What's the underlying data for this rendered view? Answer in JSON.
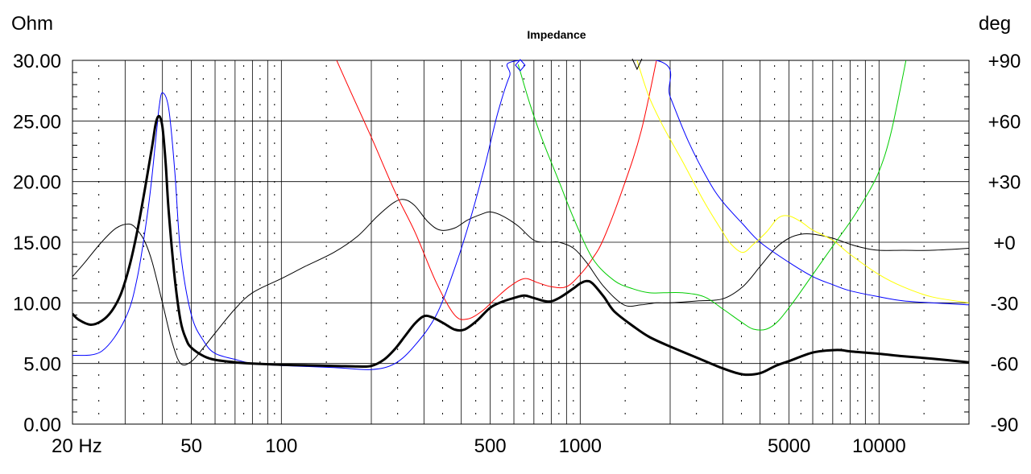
{
  "chart_data": {
    "type": "line",
    "title": "Impedance",
    "left_unit": "Ohm",
    "right_unit": "deg",
    "x_scale": "log",
    "xlim": [
      20,
      20000
    ],
    "ylim_left": [
      0,
      30
    ],
    "ylim_right": [
      -90,
      90
    ],
    "grid": true,
    "x_ticks": [
      {
        "value": 20,
        "label": "20 Hz"
      },
      {
        "value": 50,
        "label": "50"
      },
      {
        "value": 100,
        "label": "100"
      },
      {
        "value": 500,
        "label": "500"
      },
      {
        "value": 1000,
        "label": "1000"
      },
      {
        "value": 5000,
        "label": "5000"
      },
      {
        "value": 10000,
        "label": "10000"
      }
    ],
    "y_left_ticks": [
      {
        "value": 0,
        "label": "0.00"
      },
      {
        "value": 5,
        "label": "5.00"
      },
      {
        "value": 10,
        "label": "10.00"
      },
      {
        "value": 15,
        "label": "15.00"
      },
      {
        "value": 20,
        "label": "20.00"
      },
      {
        "value": 25,
        "label": "25.00"
      },
      {
        "value": 30,
        "label": "30.00"
      }
    ],
    "y_right_ticks": [
      {
        "value": 90,
        "label": "+90"
      },
      {
        "value": 60,
        "label": "+60"
      },
      {
        "value": 30,
        "label": "+30"
      },
      {
        "value": 0,
        "label": "+0"
      },
      {
        "value": -30,
        "label": "-30"
      },
      {
        "value": -60,
        "label": "-60"
      },
      {
        "value": -90,
        "label": "-90"
      }
    ],
    "series": [
      {
        "axis": "right",
        "color": "#000000",
        "width": 1,
        "x": [
          20,
          22,
          25,
          28,
          31,
          33,
          35,
          37,
          40,
          43,
          46,
          50,
          55,
          60,
          70,
          80,
          100,
          120,
          150,
          180,
          210,
          240,
          260,
          280,
          310,
          340,
          380,
          420,
          470,
          500,
          550,
          620,
          700,
          780,
          850,
          950,
          1050,
          1200,
          1400,
          1600,
          1800,
          2000,
          2500,
          3000,
          3500,
          4000,
          4500,
          5000,
          5500,
          6000,
          7000,
          8000,
          9000,
          10000,
          12000,
          15000,
          20000
        ],
        "y": [
          -17,
          -10,
          0,
          7,
          9,
          6,
          0,
          -10,
          -30,
          -49,
          -60,
          -59,
          -52,
          -45,
          -33,
          -25,
          -18,
          -12,
          -5,
          3,
          13,
          20,
          21,
          18,
          10,
          6,
          7,
          11,
          14,
          15,
          13,
          8,
          1,
          0,
          0,
          -3,
          -10,
          -22,
          -31,
          -31,
          -30,
          -30,
          -29,
          -28,
          -22,
          -12,
          -3,
          2,
          4,
          4,
          2,
          -1,
          -3,
          -4,
          -4,
          -4,
          -3
        ]
      },
      {
        "axis": "right",
        "color": "#ff0000",
        "width": 1,
        "x": [
          150,
          170,
          200,
          240,
          280,
          330,
          380,
          420,
          470,
          520,
          580,
          650,
          720,
          800,
          900,
          1000,
          1100,
          1200,
          1400,
          1600,
          1800
        ],
        "y": [
          93,
          75,
          52,
          25,
          5,
          -20,
          -36,
          -38,
          -34,
          -28,
          -22,
          -18,
          -20,
          -22,
          -22,
          -16,
          -8,
          2,
          28,
          55,
          90
        ]
      },
      {
        "axis": "right",
        "color": "#0000ff",
        "width": 1,
        "x": [
          20,
          25,
          30,
          33,
          36,
          38,
          39,
          40,
          42,
          44,
          46,
          50,
          55,
          60,
          70,
          80,
          100,
          150,
          200,
          240,
          280,
          330,
          380,
          430,
          480,
          530,
          580,
          630,
          1800,
          2000,
          2300,
          2700,
          3000,
          3500,
          4000,
          5000,
          6000,
          7000,
          8000,
          10000,
          12000,
          15000,
          20000
        ],
        "y": [
          -56,
          -54,
          -38,
          -17,
          19,
          51,
          67,
          74,
          66,
          35,
          -5,
          -36,
          -49,
          -55,
          -58,
          -60,
          -61,
          -62,
          -63,
          -60,
          -51,
          -36,
          -13,
          12,
          38,
          64,
          82,
          90,
          90,
          72,
          50,
          30,
          20,
          9,
          0,
          -10,
          -17,
          -21,
          -24,
          -27,
          -29,
          -30,
          -31
        ]
      },
      {
        "axis": "right",
        "color": "#00cc00",
        "width": 1,
        "x": [
          620,
          680,
          750,
          850,
          950,
          1100,
          1300,
          1500,
          1700,
          1900,
          2200,
          2600,
          3000,
          3500,
          3800,
          4200,
          4600,
          5200,
          6000,
          7000,
          8000,
          9000,
          10000,
          11000,
          12500
        ],
        "y": [
          88,
          68,
          50,
          30,
          12,
          -8,
          -19,
          -23,
          -25,
          -25,
          -25,
          -27,
          -33,
          -40,
          -43,
          -43,
          -39,
          -29,
          -16,
          -2,
          10,
          22,
          35,
          55,
          95
        ]
      },
      {
        "axis": "right",
        "color": "#ffff00",
        "width": 1,
        "x": [
          1550,
          1700,
          1900,
          2200,
          2600,
          3000,
          3200,
          3500,
          3800,
          4200,
          4600,
          5000,
          5500,
          6000,
          7000,
          8000,
          10000,
          12000,
          15000,
          20000
        ],
        "y": [
          90,
          72,
          57,
          40,
          20,
          5,
          -1,
          -5,
          -1,
          5,
          12,
          13,
          10,
          6,
          1,
          -6,
          -16,
          -22,
          -27,
          -30
        ]
      },
      {
        "axis": "left",
        "color": "#000000",
        "width": 3,
        "x": [
          20,
          21,
          23,
          25,
          27,
          29,
          31,
          33,
          35,
          37,
          38,
          39,
          40,
          41,
          42,
          44,
          46,
          48,
          50,
          55,
          60,
          70,
          80,
          100,
          120,
          150,
          180,
          200,
          220,
          240,
          260,
          280,
          300,
          320,
          350,
          380,
          410,
          450,
          500,
          550,
          600,
          650,
          700,
          780,
          850,
          950,
          1000,
          1050,
          1100,
          1200,
          1300,
          1500,
          1700,
          2000,
          2500,
          3000,
          3500,
          4000,
          4500,
          5000,
          6000,
          7000,
          7500,
          8000,
          10000,
          12000,
          15000,
          20000
        ],
        "y": [
          9.1,
          8.6,
          8.2,
          8.5,
          9.3,
          10.7,
          13,
          16,
          19.5,
          23,
          24.8,
          25.4,
          24.5,
          21.5,
          17.5,
          12,
          8.5,
          7,
          6.3,
          5.6,
          5.3,
          5.1,
          5.0,
          4.9,
          4.85,
          4.8,
          4.75,
          4.8,
          5.3,
          6.2,
          7.3,
          8.3,
          8.9,
          8.8,
          8.3,
          7.8,
          7.8,
          8.5,
          9.6,
          10.1,
          10.4,
          10.6,
          10.4,
          10.1,
          10.4,
          11.2,
          11.6,
          11.8,
          11.6,
          10.5,
          9.3,
          8.1,
          7.2,
          6.4,
          5.4,
          4.6,
          4.1,
          4.2,
          4.8,
          5.2,
          5.9,
          6.1,
          6.1,
          6.0,
          5.8,
          5.6,
          5.4,
          5.1
        ]
      }
    ],
    "markers": [
      {
        "shape": "diamond",
        "x": 630,
        "y_right": 90
      },
      {
        "shape": "v",
        "x": 1550,
        "y_right": 90
      }
    ]
  }
}
